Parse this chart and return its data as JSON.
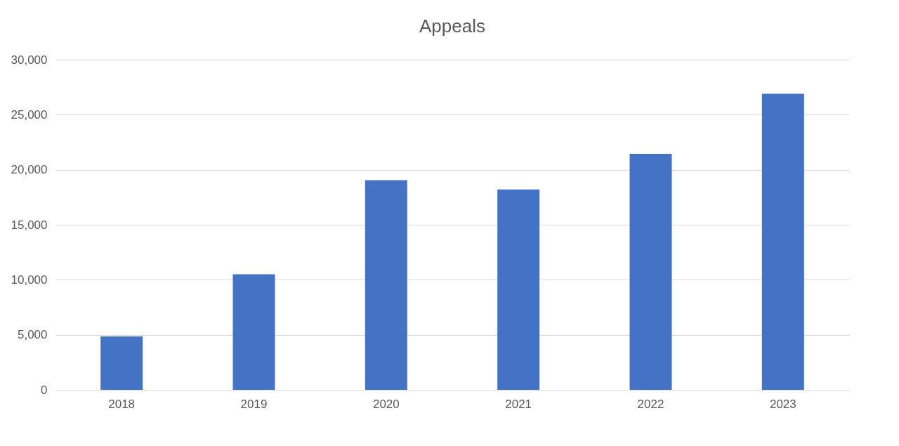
{
  "chart_data": {
    "type": "bar",
    "title": "Appeals",
    "categories": [
      "2018",
      "2019",
      "2020",
      "2021",
      "2022",
      "2023"
    ],
    "values": [
      4850,
      10500,
      19050,
      18200,
      21450,
      26900
    ],
    "color": "#4472c4",
    "ylim": [
      0,
      30000
    ],
    "yticks": [
      {
        "value": 0,
        "label": "0"
      },
      {
        "value": 5000,
        "label": "5,000"
      },
      {
        "value": 10000,
        "label": "10,000"
      },
      {
        "value": 15000,
        "label": "15,000"
      },
      {
        "value": 20000,
        "label": "20,000"
      },
      {
        "value": 25000,
        "label": "25,000"
      },
      {
        "value": 30000,
        "label": "30,000"
      }
    ],
    "grid": "y"
  }
}
